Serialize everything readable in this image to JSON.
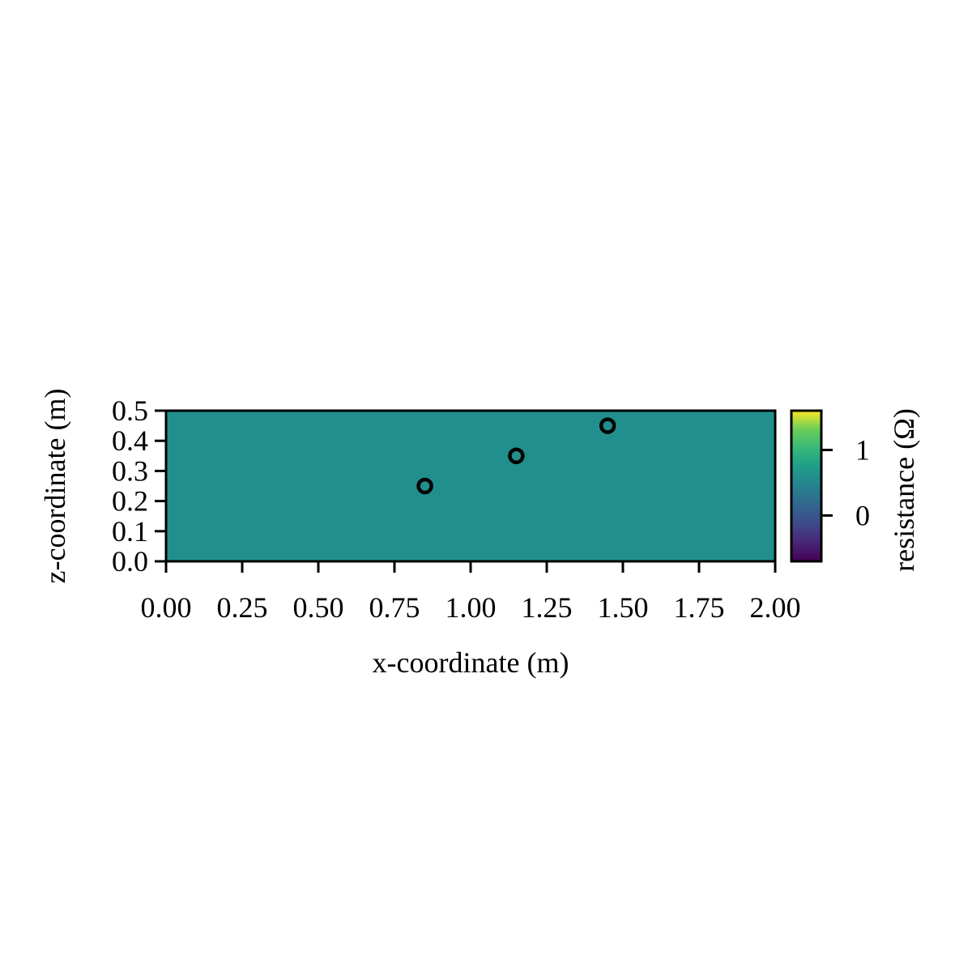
{
  "chart_data": {
    "type": "heatmap",
    "xlabel": "x-coordinate (m)",
    "ylabel": "z-coordinate (m)",
    "xlim": [
      0.0,
      2.0
    ],
    "ylim": [
      0.0,
      0.5
    ],
    "x_ticks": [
      "0.00",
      "0.25",
      "0.50",
      "0.75",
      "1.00",
      "1.25",
      "1.50",
      "1.75",
      "2.00"
    ],
    "y_ticks": [
      "0.0",
      "0.1",
      "0.2",
      "0.3",
      "0.4",
      "0.5"
    ],
    "field_value": 0.5,
    "field_color": "#21908d",
    "colormap": "viridis",
    "points": [
      {
        "x": 0.85,
        "z": 0.25
      },
      {
        "x": 1.15,
        "z": 0.35
      },
      {
        "x": 1.45,
        "z": 0.45
      }
    ],
    "colorbar": {
      "label": "resistance (Ω)",
      "range": [
        -0.7,
        1.6
      ],
      "ticks": [
        {
          "value": 1,
          "label": "1"
        },
        {
          "value": 0,
          "label": "0"
        }
      ]
    },
    "grid": false
  }
}
